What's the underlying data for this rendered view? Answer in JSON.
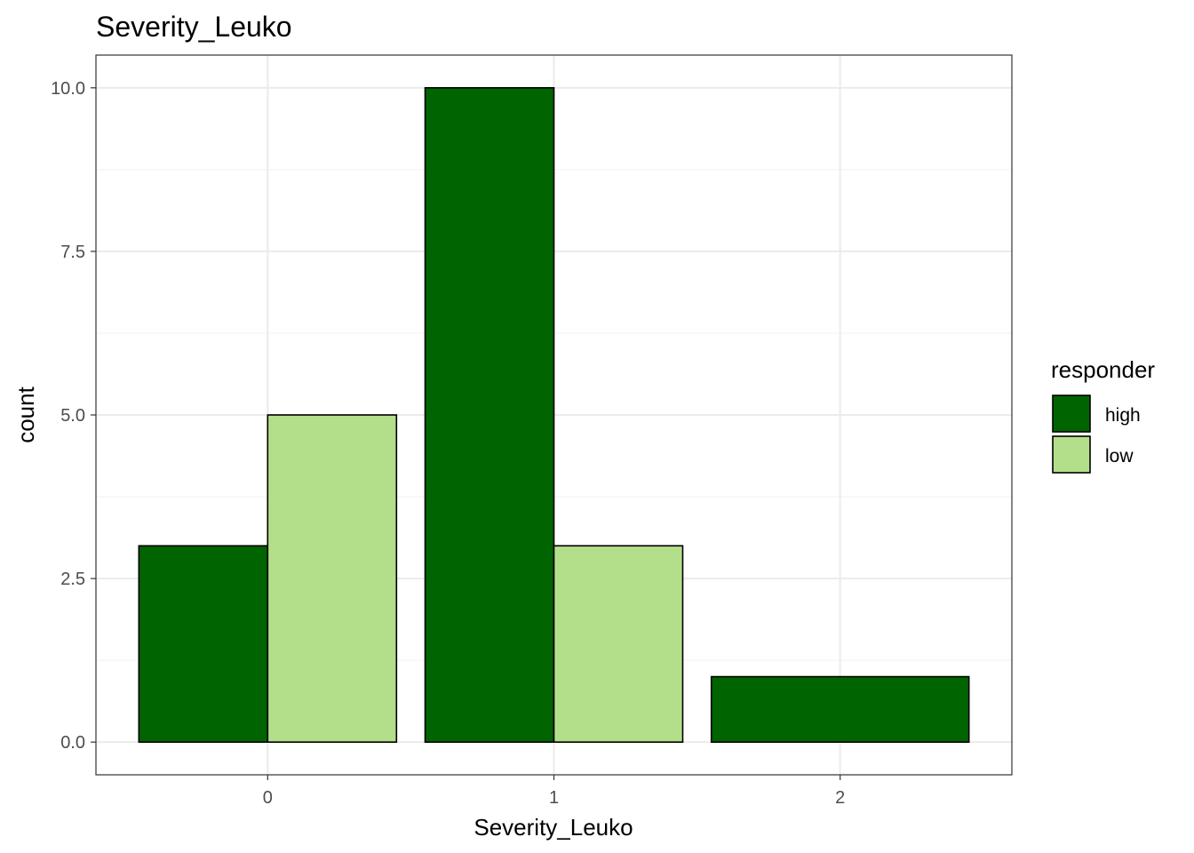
{
  "chart_data": {
    "type": "bar",
    "title": "Severity_Leuko",
    "xlabel": "Severity_Leuko",
    "ylabel": "count",
    "categories": [
      "0",
      "1",
      "2"
    ],
    "series": [
      {
        "name": "high",
        "values": [
          3,
          10,
          1
        ],
        "color": "#006400"
      },
      {
        "name": "low",
        "values": [
          5,
          3,
          null
        ],
        "color": "#b3df8a"
      }
    ],
    "ylim": [
      -0.5,
      10.5
    ],
    "yticks": [
      0,
      2.5,
      5,
      7.5,
      10
    ],
    "ytick_labels": [
      "0.0",
      "2.5",
      "5.0",
      "7.5",
      "10.0"
    ],
    "grid": true,
    "legend": {
      "title": "responder",
      "position": "right"
    }
  }
}
